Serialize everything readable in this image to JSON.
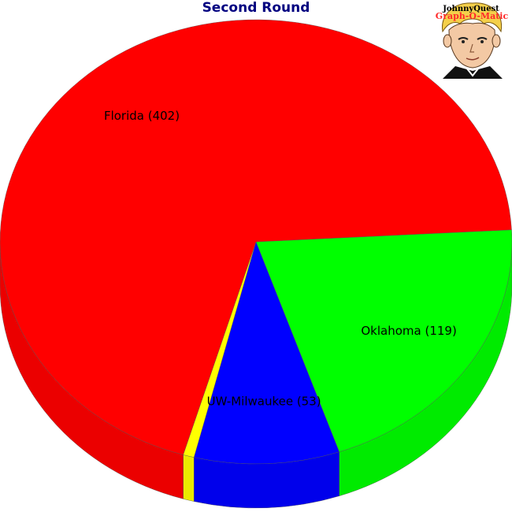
{
  "chart_data": {
    "type": "pie",
    "title": "Second Round",
    "slices": [
      {
        "label": "Oklahoma",
        "value": 119,
        "color": "#00ff00"
      },
      {
        "label": "UW-Milwaukee",
        "value": 53,
        "color": "#0000ff"
      },
      {
        "label": "",
        "value": 4,
        "color": "#ffff00"
      },
      {
        "label": "Florida",
        "value": 402,
        "color": "#ff0000"
      }
    ],
    "style": "3d"
  },
  "logo": {
    "line1": "JohnnyQuest",
    "line2": "Graph-O-Matic"
  }
}
